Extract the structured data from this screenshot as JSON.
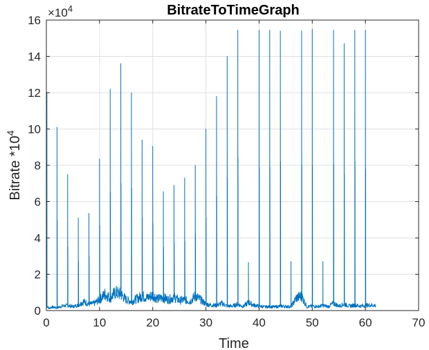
{
  "chart_data": {
    "type": "line",
    "title": "BitrateToTimeGraph",
    "xlabel": "Time",
    "ylabel_base": "Bitrate *10",
    "ylabel_exp": "4",
    "y_multiplier_base": "×10",
    "y_multiplier_exp": "4",
    "xlim": [
      0,
      70
    ],
    "ylim": [
      0,
      160000
    ],
    "xticks": [
      0,
      10,
      20,
      30,
      40,
      50,
      60,
      70
    ],
    "yticks": [
      0,
      20000,
      40000,
      60000,
      80000,
      100000,
      120000,
      140000,
      160000
    ],
    "ytick_labels": [
      "0",
      "2",
      "4",
      "6",
      "8",
      "10",
      "12",
      "14",
      "16"
    ],
    "grid": true,
    "series_color": "#0072BD",
    "baseline": [
      [
        0,
        3000
      ],
      [
        0.5,
        1200
      ],
      [
        1,
        2000
      ],
      [
        2,
        1500
      ],
      [
        3,
        2500
      ],
      [
        4,
        2800
      ],
      [
        5,
        2200
      ],
      [
        6,
        3000
      ],
      [
        7,
        5000
      ],
      [
        8,
        3500
      ],
      [
        9,
        4000
      ],
      [
        10,
        6000
      ],
      [
        11,
        9000
      ],
      [
        12,
        7000
      ],
      [
        13,
        10000
      ],
      [
        14,
        9000
      ],
      [
        15,
        6000
      ],
      [
        16,
        5000
      ],
      [
        17,
        6500
      ],
      [
        18,
        8000
      ],
      [
        19,
        7000
      ],
      [
        20,
        8500
      ],
      [
        21,
        6500
      ],
      [
        22,
        7000
      ],
      [
        23,
        6000
      ],
      [
        24,
        7500
      ],
      [
        25,
        5500
      ],
      [
        26,
        6000
      ],
      [
        27,
        5000
      ],
      [
        28,
        8000
      ],
      [
        29,
        6000
      ],
      [
        30,
        3500
      ],
      [
        31,
        3000
      ],
      [
        32,
        2800
      ],
      [
        33,
        4000
      ],
      [
        34,
        2500
      ],
      [
        35,
        2500
      ],
      [
        36,
        3500
      ],
      [
        37,
        2200
      ],
      [
        38,
        4500
      ],
      [
        39,
        3000
      ],
      [
        40,
        2500
      ],
      [
        41,
        2000
      ],
      [
        42,
        2200
      ],
      [
        43,
        2000
      ],
      [
        44,
        2500
      ],
      [
        45,
        2300
      ],
      [
        46,
        2100
      ],
      [
        47,
        7000
      ],
      [
        48,
        8000
      ],
      [
        49,
        2000
      ],
      [
        50,
        2500
      ],
      [
        51,
        2200
      ],
      [
        52,
        2800
      ],
      [
        53,
        2200
      ],
      [
        54,
        4000
      ],
      [
        55,
        2500
      ],
      [
        56,
        3500
      ],
      [
        57,
        2500
      ],
      [
        58,
        3000
      ],
      [
        59,
        2500
      ],
      [
        60,
        2800
      ],
      [
        61,
        3000
      ],
      [
        62,
        2800
      ]
    ],
    "spikes": [
      {
        "x": 0.1,
        "peak": 120000,
        "second": 0
      },
      {
        "x": 2.0,
        "peak": 101000,
        "second": 50000
      },
      {
        "x": 4.0,
        "peak": 75000,
        "second": 35000
      },
      {
        "x": 6.0,
        "peak": 51000,
        "second": 27000
      },
      {
        "x": 8.0,
        "peak": 53500,
        "second": 30000
      },
      {
        "x": 10.0,
        "peak": 83500,
        "second": 47000
      },
      {
        "x": 12.0,
        "peak": 122000,
        "second": 65000
      },
      {
        "x": 14.0,
        "peak": 136000,
        "second": 70000
      },
      {
        "x": 16.0,
        "peak": 120000,
        "second": 67500
      },
      {
        "x": 18.0,
        "peak": 94000,
        "second": 51000
      },
      {
        "x": 20.0,
        "peak": 90500,
        "second": 48000
      },
      {
        "x": 22.0,
        "peak": 65500,
        "second": 35000
      },
      {
        "x": 24.0,
        "peak": 69000,
        "second": 37000
      },
      {
        "x": 26.0,
        "peak": 73000,
        "second": 38000
      },
      {
        "x": 28.0,
        "peak": 80000,
        "second": 42000
      },
      {
        "x": 30.0,
        "peak": 100000,
        "second": 51000
      },
      {
        "x": 32.0,
        "peak": 118000,
        "second": 63000
      },
      {
        "x": 34.0,
        "peak": 140000,
        "second": 73000
      },
      {
        "x": 36.0,
        "peak": 154500,
        "second": 84000
      },
      {
        "x": 38.0,
        "peak": 26500,
        "second": 0
      },
      {
        "x": 40.0,
        "peak": 154500,
        "second": 79000
      },
      {
        "x": 42.0,
        "peak": 154500,
        "second": 79000
      },
      {
        "x": 44.0,
        "peak": 154000,
        "second": 82000
      },
      {
        "x": 46.0,
        "peak": 27000,
        "second": 0
      },
      {
        "x": 48.0,
        "peak": 154000,
        "second": 80000
      },
      {
        "x": 50.0,
        "peak": 155000,
        "second": 80000
      },
      {
        "x": 52.0,
        "peak": 27000,
        "second": 0
      },
      {
        "x": 54.0,
        "peak": 154500,
        "second": 80500
      },
      {
        "x": 56.0,
        "peak": 147000,
        "second": 75000
      },
      {
        "x": 58.0,
        "peak": 154500,
        "second": 82000
      },
      {
        "x": 60.0,
        "peak": 154500,
        "second": 78000
      }
    ]
  }
}
